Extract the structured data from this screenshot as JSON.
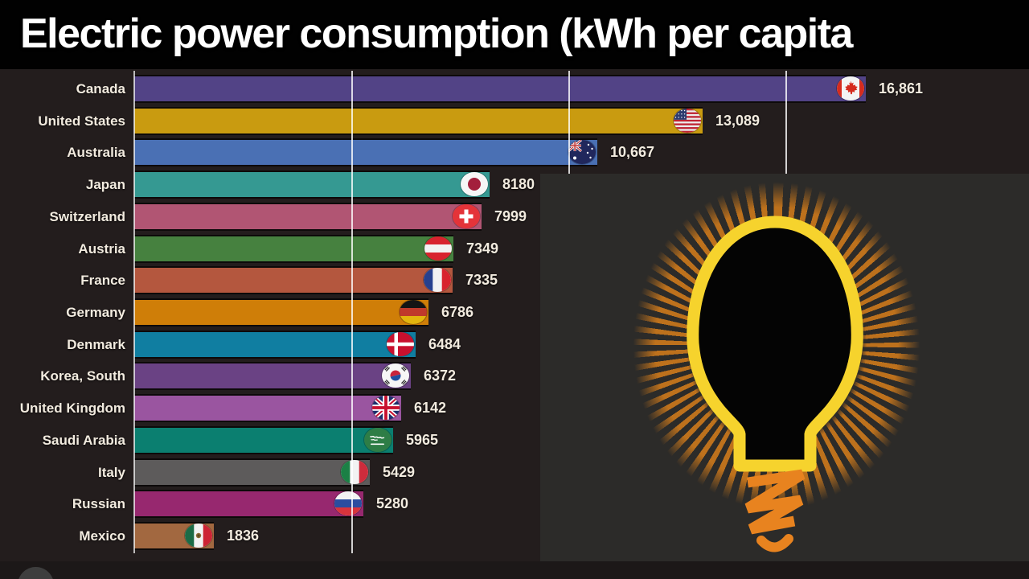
{
  "title": {
    "text": "Electric power consumption (kWh per capita"
  },
  "chart_data": {
    "type": "bar",
    "orientation": "horizontal",
    "title": "Electric power consumption (kWh per capita",
    "unit": "kWh per capita",
    "grid": true,
    "legend": false,
    "x_axis": {
      "min": 0,
      "gridlines": [
        5000,
        10000,
        15000
      ],
      "tick_labels_shown": false
    },
    "categories": [
      "Canada",
      "United States",
      "Australia",
      "Japan",
      "Switzerland",
      "Austria",
      "France",
      "Germany",
      "Denmark",
      "Korea, South",
      "United Kingdom",
      "Saudi Arabia",
      "Italy",
      "Russian",
      "Mexico"
    ],
    "values": [
      16861,
      13089,
      10667,
      8180,
      7999,
      7349,
      7335,
      6786,
      6484,
      6372,
      6142,
      5965,
      5429,
      5280,
      1836
    ],
    "value_labels": [
      "16,861",
      "13,089",
      "10,667",
      "8180",
      "7999",
      "7349",
      "7335",
      "6786",
      "6484",
      "6372",
      "6142",
      "5965",
      "5429",
      "5280",
      "1836"
    ],
    "bar_colors": [
      "#524386",
      "#c99b10",
      "#4a70b4",
      "#359992",
      "#b15573",
      "#46813f",
      "#b4573e",
      "#cf7e08",
      "#107ea1",
      "#6a4284",
      "#9a55a0",
      "#0b7f70",
      "#5d5b5b",
      "#97286f",
      "#a26840"
    ],
    "flags": [
      "ca",
      "us",
      "au",
      "jp",
      "ch",
      "at",
      "fr",
      "de",
      "dk",
      "kr",
      "gb",
      "sa",
      "it",
      "ru",
      "mx"
    ]
  },
  "overlay_graphic": {
    "name": "glowing-light-bulb-illustration"
  },
  "colors": {
    "background": "#231d1d",
    "title_bg": "#010101",
    "title_text": "#ffffff",
    "label_text": "#f2ebdf",
    "value_text": "#f2ebdf",
    "grid_line": "#ffffff",
    "overlay_bg": "#2c2b29",
    "bottom_strip": "#1c1818",
    "bulb_outline": "#f6d32d",
    "bulb_fill": "#040404",
    "bulb_base": "#e8831f",
    "rays": "#c5751c"
  }
}
